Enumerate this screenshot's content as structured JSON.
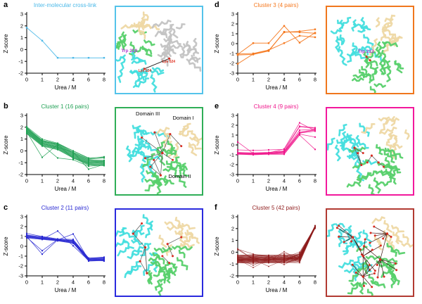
{
  "figure": {
    "panel_letters": [
      "a",
      "b",
      "c",
      "d",
      "e",
      "f"
    ]
  },
  "chart_data": [
    {
      "type": "line",
      "title": "Inter-molecular cross-link",
      "color": "#4cb9e8",
      "xlabel": "Urea / M",
      "ylabel": "Z-score",
      "x": [
        0,
        1,
        2,
        4,
        6,
        8
      ],
      "ylim": [
        -2,
        3
      ],
      "series": [
        [
          1.85,
          0.75,
          -0.7,
          -0.7,
          -0.7,
          -0.7
        ]
      ]
    },
    {
      "type": "line",
      "title": "Cluster 1 (16 pairs)",
      "color": "#22a155",
      "xlabel": "Urea / M",
      "ylabel": "Z-score",
      "x": [
        0,
        1,
        2,
        4,
        6,
        8
      ],
      "ylim": [
        -2,
        3
      ],
      "series": [
        [
          2.05,
          1.0,
          0.65,
          0.0,
          -0.6,
          -0.55
        ],
        [
          1.95,
          0.9,
          0.6,
          -0.1,
          -0.7,
          -0.6
        ],
        [
          1.9,
          0.85,
          0.55,
          -0.15,
          -0.75,
          -0.8
        ],
        [
          1.85,
          0.8,
          0.5,
          -0.2,
          -0.8,
          -0.85
        ],
        [
          1.8,
          0.75,
          0.45,
          -0.25,
          -0.85,
          -0.9
        ],
        [
          1.75,
          0.7,
          0.4,
          -0.3,
          -0.9,
          -0.95
        ],
        [
          1.7,
          0.65,
          0.35,
          -0.35,
          -0.95,
          -1.0
        ],
        [
          1.65,
          0.6,
          0.3,
          -0.4,
          -1.0,
          -1.05
        ],
        [
          1.6,
          0.55,
          0.25,
          -0.45,
          -1.05,
          -1.1
        ],
        [
          1.55,
          0.5,
          0.2,
          -0.5,
          -1.1,
          -1.15
        ],
        [
          1.5,
          0.45,
          0.15,
          -0.55,
          -1.15,
          -1.2
        ],
        [
          1.45,
          0.4,
          0.1,
          -0.6,
          -1.2,
          -1.25
        ],
        [
          1.6,
          -0.55,
          0.55,
          -0.65,
          -1.0,
          -0.9
        ],
        [
          1.7,
          0.5,
          -0.6,
          -0.75,
          -1.3,
          -1.2
        ],
        [
          1.9,
          0.6,
          0.3,
          -0.1,
          -1.55,
          -1.15
        ],
        [
          2.0,
          0.8,
          0.6,
          0.0,
          -0.65,
          -0.5
        ]
      ]
    },
    {
      "type": "line",
      "title": "Cluster 2 (11 pairs)",
      "color": "#2828d2",
      "xlabel": "Urea / M",
      "ylabel": "Z-score",
      "x": [
        0,
        1,
        2,
        4,
        6,
        8
      ],
      "ylim": [
        -3,
        3
      ],
      "series": [
        [
          1.3,
          1.0,
          0.75,
          0.7,
          -1.2,
          -1.1
        ],
        [
          1.15,
          0.95,
          0.7,
          0.6,
          -1.25,
          -1.2
        ],
        [
          1.1,
          0.9,
          0.68,
          0.55,
          -1.3,
          -1.25
        ],
        [
          1.05,
          0.85,
          0.65,
          0.5,
          -1.35,
          -1.3
        ],
        [
          1.0,
          0.8,
          0.62,
          0.45,
          -1.4,
          -1.35
        ],
        [
          0.95,
          0.78,
          0.6,
          0.4,
          -1.45,
          -1.4
        ],
        [
          0.9,
          0.75,
          0.58,
          0.35,
          -1.5,
          -1.45
        ],
        [
          0.85,
          0.7,
          0.55,
          0.3,
          -1.3,
          -1.5
        ],
        [
          0.9,
          -0.45,
          0.7,
          0.6,
          -1.2,
          -1.15
        ],
        [
          1.0,
          -0.8,
          0.65,
          1.25,
          -1.35,
          -1.3
        ],
        [
          1.1,
          0.7,
          1.55,
          0.05,
          -1.45,
          -1.4
        ]
      ]
    },
    {
      "type": "line",
      "title": "Cluster 3 (4 pairs)",
      "color": "#f5781e",
      "xlabel": "Urea / M",
      "ylabel": "Z-score",
      "x": [
        0,
        1,
        2,
        4,
        6,
        8
      ],
      "ylim": [
        -3,
        3
      ],
      "series": [
        [
          -2.05,
          -1.05,
          -0.7,
          1.15,
          1.25,
          1.45
        ],
        [
          -1.1,
          0.05,
          0.05,
          1.8,
          0.1,
          1.1
        ],
        [
          -1.05,
          -1.0,
          -0.65,
          0.05,
          0.8,
          0.65
        ],
        [
          -1.15,
          -1.1,
          -0.75,
          1.2,
          1.15,
          1.05
        ]
      ]
    },
    {
      "type": "line",
      "title": "Cluster 4 (9 pairs)",
      "color": "#ef188c",
      "xlabel": "Urea / M",
      "ylabel": "Z-score",
      "x": [
        0,
        1,
        2,
        4,
        6,
        8
      ],
      "ylim": [
        -3,
        3
      ],
      "series": [
        [
          0.3,
          -0.85,
          -0.8,
          -0.4,
          2.25,
          1.45
        ],
        [
          -0.5,
          -0.55,
          -0.5,
          -0.45,
          1.9,
          1.75
        ],
        [
          -0.75,
          -0.8,
          -0.75,
          -0.6,
          1.85,
          1.7
        ],
        [
          -0.8,
          -0.85,
          -0.8,
          -0.65,
          1.5,
          1.6
        ],
        [
          -0.85,
          -0.9,
          -0.85,
          -0.7,
          1.3,
          1.55
        ],
        [
          -0.85,
          -0.9,
          -0.85,
          -0.75,
          1.25,
          1.5
        ],
        [
          -0.9,
          -0.95,
          -0.9,
          -0.8,
          1.2,
          1.4
        ],
        [
          -0.9,
          -0.95,
          -0.9,
          -0.9,
          1.1,
          0.8
        ],
        [
          -0.95,
          -1.0,
          -0.95,
          -0.95,
          1.0,
          -0.45
        ]
      ]
    },
    {
      "type": "line",
      "title": "Cluster 5 (42 pairs)",
      "color": "#8f1d1d",
      "xlabel": "Urea / M",
      "ylabel": "Z-score",
      "x": [
        0,
        1,
        2,
        4,
        6,
        8
      ],
      "ylim": [
        -2,
        3
      ],
      "series": [
        [
          -0.55,
          -0.6,
          -0.6,
          -0.55,
          -0.5,
          2.2
        ],
        [
          -0.6,
          -0.55,
          -0.65,
          -0.6,
          -0.45,
          2.15
        ],
        [
          -0.65,
          -0.7,
          -0.6,
          -0.65,
          -0.55,
          2.25
        ],
        [
          -0.5,
          -0.45,
          -0.55,
          -0.5,
          -0.4,
          2.1
        ],
        [
          -0.7,
          -0.65,
          -0.7,
          -0.7,
          -0.6,
          2.2
        ],
        [
          -0.45,
          -0.5,
          -0.5,
          -0.45,
          -0.35,
          2.05
        ],
        [
          -0.75,
          -0.8,
          -0.75,
          -0.75,
          -0.65,
          2.15
        ],
        [
          -0.4,
          -0.35,
          -0.45,
          -0.4,
          -0.3,
          2.1
        ],
        [
          -0.8,
          -0.85,
          -0.8,
          -0.8,
          -0.7,
          2.2
        ],
        [
          -0.35,
          -0.4,
          -0.35,
          -0.35,
          -0.25,
          2.0
        ],
        [
          -0.85,
          -0.8,
          -0.85,
          -0.85,
          -0.75,
          2.25
        ],
        [
          -0.3,
          -0.25,
          -0.3,
          -0.3,
          -0.2,
          2.05
        ],
        [
          -0.9,
          -0.95,
          -0.9,
          -0.9,
          -0.8,
          2.15
        ],
        [
          -0.25,
          -0.3,
          -0.25,
          -0.25,
          -0.15,
          2.1
        ],
        [
          -0.6,
          -0.65,
          -0.55,
          -0.6,
          -0.5,
          2.2
        ],
        [
          -0.55,
          -0.5,
          -0.6,
          -0.55,
          -0.45,
          2.15
        ],
        [
          -0.65,
          -0.6,
          -0.65,
          -0.65,
          -0.55,
          2.1
        ],
        [
          -0.5,
          -0.55,
          -0.45,
          -0.5,
          -0.4,
          2.25
        ],
        [
          -0.7,
          -0.75,
          -0.7,
          -0.7,
          -0.6,
          2.05
        ],
        [
          -0.45,
          -0.4,
          -0.5,
          -0.45,
          -0.35,
          2.2
        ],
        [
          -0.75,
          -0.7,
          -0.75,
          -0.75,
          -0.65,
          2.1
        ],
        [
          0.3,
          -0.6,
          -0.55,
          -0.6,
          -0.5,
          2.15
        ],
        [
          0.2,
          -0.55,
          -0.6,
          -0.55,
          -0.45,
          2.2
        ],
        [
          -0.6,
          -1.3,
          -0.6,
          -0.6,
          -0.5,
          2.1
        ],
        [
          -0.55,
          -1.1,
          -0.55,
          -0.55,
          -0.45,
          2.15
        ],
        [
          -0.65,
          -0.6,
          -1.2,
          -0.65,
          -0.55,
          2.2
        ],
        [
          -0.5,
          -0.45,
          -0.5,
          -1.05,
          -0.4,
          2.1
        ],
        [
          -0.7,
          -0.65,
          -0.7,
          -0.2,
          -0.6,
          2.15
        ],
        [
          -0.45,
          -0.5,
          -0.45,
          -0.1,
          -0.35,
          2.2
        ],
        [
          -0.75,
          -0.7,
          -0.75,
          0.05,
          -0.65,
          2.05
        ],
        [
          -0.4,
          -0.45,
          -0.4,
          -0.45,
          0.0,
          2.1
        ],
        [
          -0.8,
          -0.75,
          -0.8,
          -0.8,
          -0.1,
          2.2
        ],
        [
          -0.35,
          -0.3,
          -0.35,
          -0.35,
          -0.85,
          2.15
        ],
        [
          -0.85,
          -0.9,
          -0.85,
          -0.85,
          -0.9,
          2.1
        ],
        [
          -0.3,
          -0.35,
          -0.3,
          -0.3,
          -0.75,
          2.2
        ],
        [
          -0.9,
          -0.85,
          -0.9,
          -0.9,
          -0.55,
          2.25
        ],
        [
          -0.25,
          -0.2,
          -0.25,
          -0.25,
          -0.45,
          2.05
        ],
        [
          -0.6,
          -0.55,
          -0.6,
          -0.6,
          -0.35,
          2.1
        ],
        [
          -0.55,
          -0.6,
          -0.55,
          -0.55,
          -0.25,
          2.2
        ],
        [
          -0.65,
          -0.7,
          -0.65,
          -0.65,
          -0.15,
          2.15
        ],
        [
          0.25,
          -0.15,
          -0.4,
          -0.5,
          -0.6,
          2.1
        ],
        [
          -0.6,
          -0.6,
          -0.6,
          -0.6,
          -0.5,
          2.2
        ]
      ]
    }
  ],
  "structures": [
    {
      "border_color": "#54c3ea",
      "domain_colors": {
        "cyan": "#45dede",
        "green": "#57d06b",
        "wheat": "#eed8a4",
        "gray": "#c3c3c3"
      },
      "crosslink_color": "#222222",
      "node_color": "#d92b1f",
      "labels": [
        {
          "text": "Trp 213",
          "color": "#b43bd0"
        },
        {
          "text": "Lys 524",
          "color": "#e03222"
        },
        {
          "text": "Lys 524",
          "color": "#e03222"
        }
      ]
    },
    {
      "border_color": "#2fae57",
      "domain_colors": {
        "cyan": "#45dede",
        "green": "#57d06b",
        "wheat": "#eed8a4",
        "gray": "#c3c3c3"
      },
      "crosslink_color": "#555555",
      "node_color": "#d92b1f",
      "labels": [
        {
          "text": "Domain III",
          "color": "#000000"
        },
        {
          "text": "Domain I",
          "color": "#000000"
        },
        {
          "text": "Domain II",
          "color": "#000000"
        }
      ]
    },
    {
      "border_color": "#2a2ade",
      "domain_colors": {
        "cyan": "#45dede",
        "green": "#57d06b",
        "wheat": "#eed8a4",
        "gray": "#c3c3c3"
      },
      "crosslink_color": "#555555",
      "node_color": "#d92b1f",
      "labels": []
    },
    {
      "border_color": "#f0771d",
      "domain_colors": {
        "cyan": "#45dede",
        "green": "#57d06b",
        "wheat": "#eed8a4",
        "gray": "#c3c3c3"
      },
      "crosslink_color": "#555555",
      "node_color": "#d92b1f",
      "labels": [
        {
          "text": "Trp 213",
          "color": "#b43bd0"
        }
      ]
    },
    {
      "border_color": "#f2189c",
      "domain_colors": {
        "cyan": "#45dede",
        "green": "#57d06b",
        "wheat": "#eed8a4",
        "gray": "#c3c3c3"
      },
      "crosslink_color": "#555555",
      "node_color": "#d92b1f",
      "labels": []
    },
    {
      "border_color": "#b23a32",
      "domain_colors": {
        "cyan": "#45dede",
        "green": "#57d06b",
        "wheat": "#eed8a4",
        "gray": "#c3c3c3"
      },
      "crosslink_color": "#3d1410",
      "node_color": "#d92b1f",
      "labels": []
    }
  ]
}
